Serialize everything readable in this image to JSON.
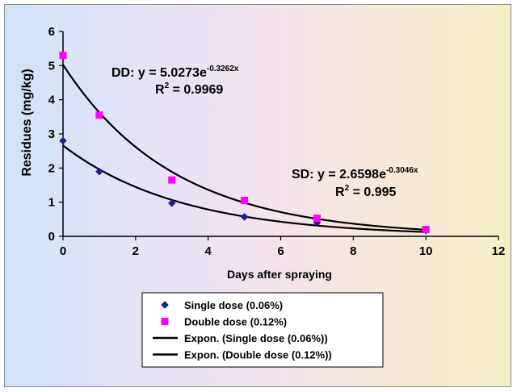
{
  "chart_data": {
    "type": "scatter",
    "xlabel": "Days after spraying",
    "ylabel": "Residues (mg/kg)",
    "xlim": [
      0,
      12
    ],
    "ylim": [
      0,
      6
    ],
    "x_ticks": [
      "0",
      "2",
      "4",
      "6",
      "8",
      "10",
      "12"
    ],
    "y_ticks": [
      "0",
      "1",
      "2",
      "3",
      "4",
      "5",
      "6"
    ],
    "grid": false,
    "legend_position": "bottom",
    "series": [
      {
        "name": "Single dose (0.06%)",
        "marker": "diamond",
        "color": "#1f1f8c",
        "x": [
          0,
          1,
          3,
          5,
          7,
          10
        ],
        "y": [
          2.8,
          1.9,
          0.97,
          0.57,
          0.4,
          0.17
        ]
      },
      {
        "name": "Double dose (0.12%)",
        "marker": "square",
        "color": "#ff00ff",
        "x": [
          0,
          1,
          3,
          5,
          7,
          10
        ],
        "y": [
          5.3,
          3.55,
          1.65,
          1.05,
          0.53,
          0.2
        ]
      }
    ],
    "trendlines": [
      {
        "name": "Expon. (Single dose (0.06%))",
        "type": "exponential",
        "a": 2.6598,
        "b": -0.3046,
        "color": "#000000",
        "equation_label": "SD: y = 2.6598e",
        "equation_exp": "-0.3046x",
        "r2_label": "R",
        "r2_sup": "2",
        "r2_value": " = 0.995"
      },
      {
        "name": "Expon. (Double dose (0.12%))",
        "type": "exponential",
        "a": 5.0273,
        "b": -0.3262,
        "color": "#000000",
        "equation_label": "DD: y = 5.0273e",
        "equation_exp": "-0.3262x",
        "r2_label": "R",
        "r2_sup": "2",
        "r2_value": " = 0.9969"
      }
    ]
  }
}
